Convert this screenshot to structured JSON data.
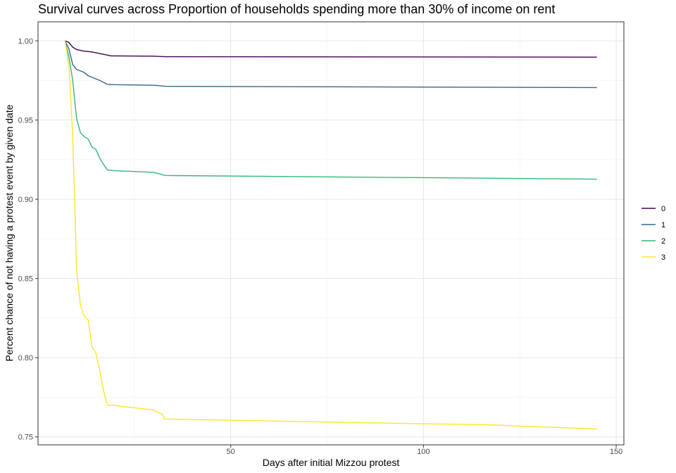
{
  "chart_data": {
    "type": "line",
    "title": "Survival curves across Proportion of households spending more than 30% of income on rent",
    "xlabel": "Days after initial Mizzou protest",
    "ylabel": "Percent chance of not having a protest event by given date",
    "xlim": [
      0,
      152
    ],
    "ylim": [
      0.745,
      1.012
    ],
    "x_ticks": [
      50,
      100,
      150
    ],
    "y_ticks": [
      0.75,
      0.8,
      0.85,
      0.9,
      0.95,
      1.0
    ],
    "x_tick_labels": [
      "50",
      "100",
      "150"
    ],
    "y_tick_labels": [
      "0.75",
      "0.80",
      "0.85",
      "0.90",
      "0.95",
      "1.00"
    ],
    "grid": true,
    "legend": "right",
    "series": [
      {
        "name": "0",
        "color": "#440154",
        "points": [
          [
            7,
            1.0
          ],
          [
            8,
            0.999
          ],
          [
            9,
            0.996
          ],
          [
            10,
            0.9945
          ],
          [
            12,
            0.9935
          ],
          [
            14,
            0.993
          ],
          [
            16,
            0.992
          ],
          [
            18,
            0.991
          ],
          [
            19,
            0.9905
          ],
          [
            20,
            0.9905
          ],
          [
            30,
            0.9903
          ],
          [
            33,
            0.99
          ],
          [
            145,
            0.9897
          ]
        ]
      },
      {
        "name": "1",
        "color": "#31688e",
        "points": [
          [
            7,
            1.0
          ],
          [
            8,
            0.995
          ],
          [
            9,
            0.985
          ],
          [
            10,
            0.982
          ],
          [
            12,
            0.98
          ],
          [
            13,
            0.978
          ],
          [
            14,
            0.977
          ],
          [
            16,
            0.975
          ],
          [
            18,
            0.9725
          ],
          [
            20,
            0.9723
          ],
          [
            30,
            0.972
          ],
          [
            33,
            0.9713
          ],
          [
            145,
            0.9705
          ]
        ]
      },
      {
        "name": "2",
        "color": "#35b779",
        "points": [
          [
            7,
            1.0
          ],
          [
            8,
            0.99
          ],
          [
            9,
            0.975
          ],
          [
            10,
            0.951
          ],
          [
            11,
            0.942
          ],
          [
            12,
            0.9395
          ],
          [
            13,
            0.938
          ],
          [
            14,
            0.933
          ],
          [
            15,
            0.9315
          ],
          [
            16,
            0.926
          ],
          [
            17,
            0.922
          ],
          [
            18,
            0.9185
          ],
          [
            20,
            0.918
          ],
          [
            30,
            0.917
          ],
          [
            33,
            0.915
          ],
          [
            145,
            0.9127
          ]
        ]
      },
      {
        "name": "3",
        "color": "#fde725",
        "points": [
          [
            7,
            1.0
          ],
          [
            8,
            0.985
          ],
          [
            9,
            0.94
          ],
          [
            10,
            0.856
          ],
          [
            11,
            0.833
          ],
          [
            12,
            0.826
          ],
          [
            13,
            0.824
          ],
          [
            14,
            0.807
          ],
          [
            15,
            0.803
          ],
          [
            16,
            0.792
          ],
          [
            17,
            0.779
          ],
          [
            18,
            0.77
          ],
          [
            20,
            0.7698
          ],
          [
            30,
            0.767
          ],
          [
            32,
            0.7645
          ],
          [
            33,
            0.7613
          ],
          [
            50,
            0.7605
          ],
          [
            100,
            0.7583
          ],
          [
            115,
            0.7578
          ],
          [
            145,
            0.755
          ]
        ]
      }
    ]
  }
}
